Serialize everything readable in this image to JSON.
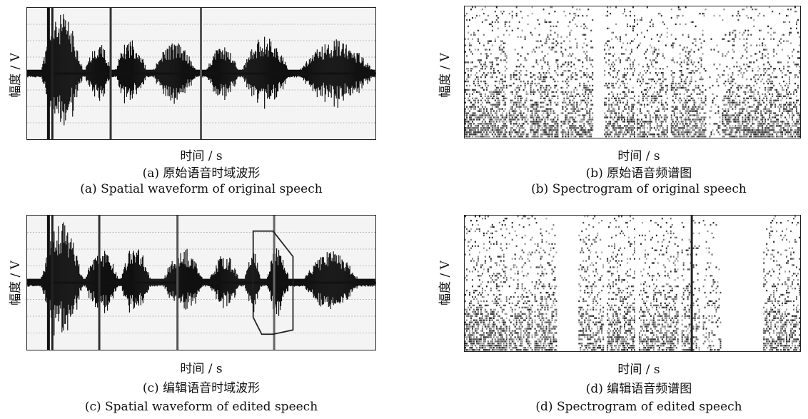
{
  "panels": [
    {
      "id": "a",
      "y_label": "幅度 / V",
      "x_label": "时间 / s",
      "caption_cn": "(a) 原始语音时域波形",
      "caption_en": "(a) Spatial waveform of original speech"
    },
    {
      "id": "b",
      "y_label": "幅度 / V",
      "x_label": "时间 / s",
      "caption_cn": "(b) 原始语音频谱图",
      "caption_en": "(b) Spectrogram of original speech"
    },
    {
      "id": "c",
      "y_label": "幅度 / V",
      "x_label": "时间 / s",
      "caption_cn": "(c) 编辑语音时域波形",
      "caption_en": "(c) Spatial waveform of edited speech"
    },
    {
      "id": "d",
      "y_label": "幅度 / V",
      "x_label": "时间 / s",
      "caption_cn": "(d) 编辑语音频谱图",
      "caption_en": "(d) Spectrogram of edited speech"
    }
  ],
  "colors": {
    "waveform": "#111111",
    "spectrogram": "#1a1a1a",
    "edit_box": "#222222",
    "frame": "#222222"
  }
}
